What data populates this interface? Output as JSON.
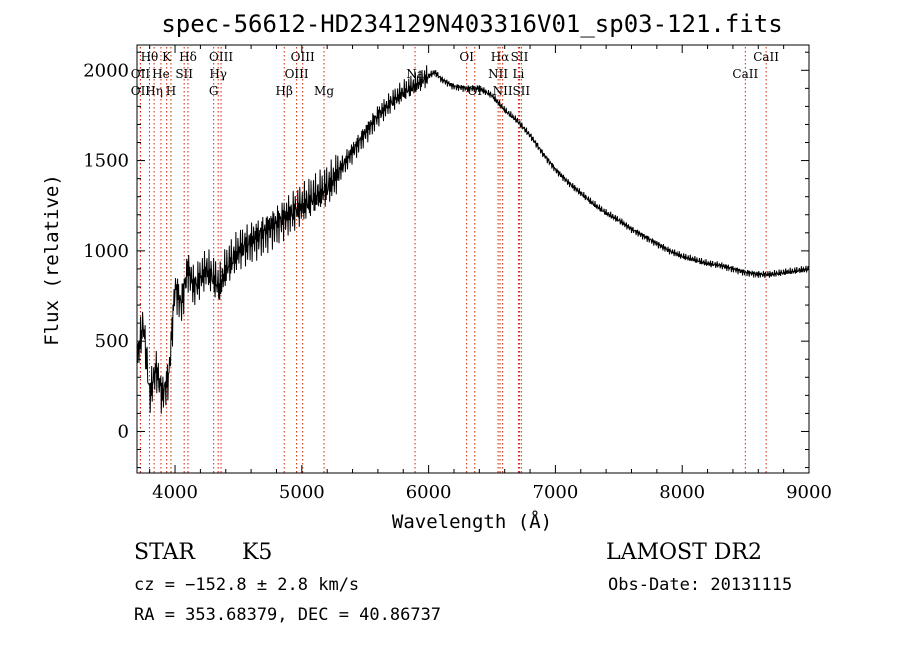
{
  "chart_data": {
    "type": "line",
    "title": "spec-56612-HD234129N403316V01_sp03-121.fits",
    "xlabel": "Wavelength (Å)",
    "ylabel": "Flux (relative)",
    "xlim": [
      3700,
      9000
    ],
    "ylim": [
      -230,
      2140
    ],
    "x_ticks": [
      4000,
      5000,
      6000,
      7000,
      8000,
      9000
    ],
    "x_tick_labels": [
      "4000",
      "5000",
      "6000",
      "7000",
      "8000",
      "9000"
    ],
    "y_ticks": [
      0,
      500,
      1000,
      1500,
      2000
    ],
    "y_tick_labels": [
      "0",
      "500",
      "1000",
      "1500",
      "2000"
    ],
    "grid": false,
    "line_color": "#000000",
    "marker_color": "#cc2200",
    "series": [
      {
        "x": [
          3700,
          3750,
          3800,
          3850,
          3900,
          3950,
          4000,
          4050,
          4100,
          4150,
          4200,
          4250,
          4300,
          4350,
          4400,
          4500,
          4600,
          4700,
          4800,
          4900,
          5000,
          5100,
          5200,
          5300,
          5400,
          5500,
          5600,
          5700,
          5800,
          5900,
          6000,
          6050,
          6100,
          6200,
          6300,
          6400,
          6500,
          6600,
          6700,
          6800,
          6900,
          7000,
          7100,
          7200,
          7300,
          7400,
          7500,
          7600,
          7700,
          7800,
          7900,
          8000,
          8100,
          8200,
          8300,
          8400,
          8500,
          8600,
          8700,
          8800,
          8900,
          9000
        ],
        "y": [
          400,
          600,
          200,
          350,
          200,
          300,
          800,
          700,
          900,
          800,
          850,
          900,
          850,
          800,
          900,
          1000,
          1050,
          1100,
          1150,
          1200,
          1250,
          1300,
          1350,
          1450,
          1550,
          1650,
          1750,
          1820,
          1880,
          1920,
          1970,
          1990,
          1950,
          1910,
          1900,
          1900,
          1860,
          1780,
          1720,
          1640,
          1540,
          1450,
          1380,
          1320,
          1260,
          1210,
          1170,
          1120,
          1080,
          1040,
          1000,
          970,
          950,
          930,
          920,
          900,
          880,
          870,
          870,
          880,
          890,
          900
        ]
      }
    ],
    "spectral_lines": [
      {
        "label": "Hθ",
        "wavelength": 3798,
        "row": 1
      },
      {
        "label": "OII",
        "wavelength": 3727,
        "row": 2
      },
      {
        "label": "OII",
        "wavelength": 3727,
        "row": 3
      },
      {
        "label": "K",
        "wavelength": 3934,
        "row": 1
      },
      {
        "label": "Hη",
        "wavelength": 3835,
        "row": 3
      },
      {
        "label": "He",
        "wavelength": 3889,
        "row": 2
      },
      {
        "label": "H",
        "wavelength": 3968,
        "row": 3
      },
      {
        "label": "SII",
        "wavelength": 4072,
        "row": 2
      },
      {
        "label": "Hδ",
        "wavelength": 4102,
        "row": 1
      },
      {
        "label": "OIII",
        "wavelength": 4363,
        "row": 1
      },
      {
        "label": "Hγ",
        "wavelength": 4340,
        "row": 2
      },
      {
        "label": "G",
        "wavelength": 4305,
        "row": 3
      },
      {
        "label": "Hβ",
        "wavelength": 4861,
        "row": 3
      },
      {
        "label": "OIII",
        "wavelength": 4959,
        "row": 2
      },
      {
        "label": "OIII",
        "wavelength": 5007,
        "row": 1
      },
      {
        "label": "Mg",
        "wavelength": 5175,
        "row": 3
      },
      {
        "label": "Na",
        "wavelength": 5893,
        "row": 2
      },
      {
        "label": "OI",
        "wavelength": 6300,
        "row": 1
      },
      {
        "label": "OI",
        "wavelength": 6364,
        "row": 3
      },
      {
        "label": "Hα",
        "wavelength": 6563,
        "row": 1
      },
      {
        "label": "NII",
        "wavelength": 6548,
        "row": 2
      },
      {
        "label": "NII",
        "wavelength": 6584,
        "row": 3
      },
      {
        "label": "SII",
        "wavelength": 6717,
        "row": 1
      },
      {
        "label": "Li",
        "wavelength": 6708,
        "row": 2
      },
      {
        "label": "SII",
        "wavelength": 6731,
        "row": 3
      },
      {
        "label": "CaII",
        "wavelength": 8498,
        "row": 2
      },
      {
        "label": "CaII",
        "wavelength": 8662,
        "row": 1
      }
    ]
  },
  "info": {
    "object_class": "STAR",
    "subclass": "K5",
    "survey": "LAMOST DR2",
    "cz": "cz = −152.8 ± 2.8 km/s",
    "obs_date": "Obs-Date: 20131115",
    "coords": "RA = 353.68379, DEC =  40.86737"
  }
}
